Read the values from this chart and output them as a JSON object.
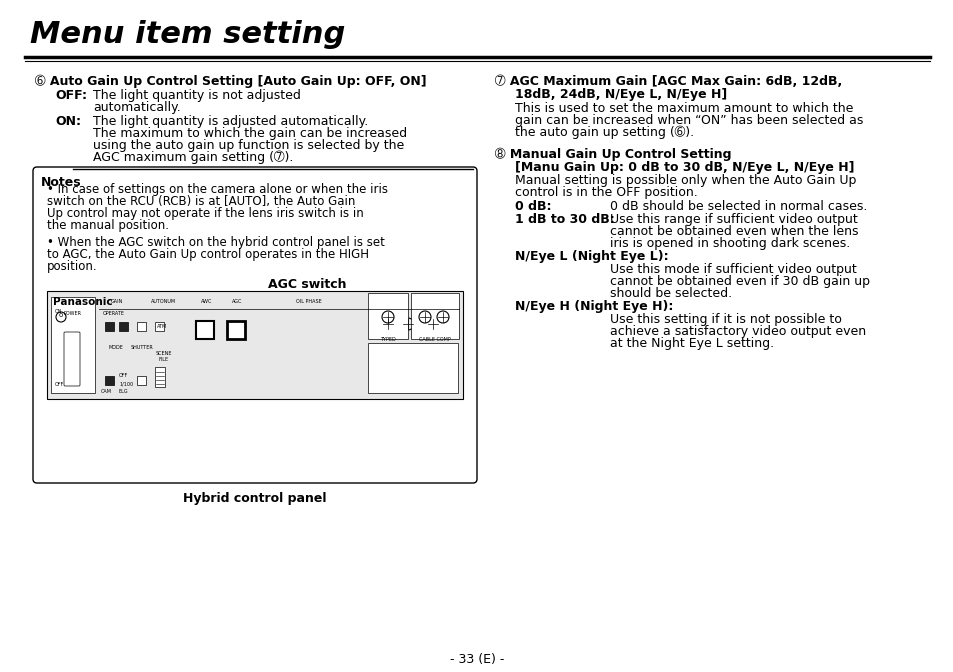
{
  "title": "Menu item setting",
  "bg_color": "#ffffff",
  "text_color": "#000000",
  "footer_text": "- 33 (E) -",
  "left_column": {
    "section5_header": "➅ Auto Gain Up Control Setting [Auto Gain Up: OFF, ON]",
    "section5_off_label": "OFF:",
    "section5_off_text1": "The light quantity is not adjusted",
    "section5_off_text2": "automatically.",
    "section5_on_label": "ON:",
    "section5_on_text1": "The light quantity is adjusted automatically.",
    "section5_on_text2": "The maximum to which the gain can be increased",
    "section5_on_text3": "using the auto gain up function is selected by the",
    "section5_on_text4": "AGC maximum gain setting (➆).",
    "notes_header": "Notes",
    "note1_lines": [
      "• In case of settings on the camera alone or when the iris",
      "switch on the RCU (RCB) is at [AUTO], the Auto Gain",
      "Up control may not operate if the lens iris switch is in",
      "the manual position."
    ],
    "note2_lines": [
      "• When the AGC switch on the hybrid control panel is set",
      "to AGC, the Auto Gain Up control operates in the HIGH",
      "position."
    ],
    "agc_switch_label": "AGC switch",
    "hybrid_panel_label": "Hybrid control panel"
  },
  "right_column": {
    "section6_header": "➆ AGC Maximum Gain [AGC Max Gain: 6dB, 12dB,",
    "section6_header2": "18dB, 24dB, N/Eye L, N/Eye H]",
    "section6_text1": "This is used to set the maximum amount to which the",
    "section6_text2": "gain can be increased when “ON” has been selected as",
    "section6_text3": "the auto gain up setting (➅).",
    "section7_header1": "➇ Manual Gain Up Control Setting",
    "section7_header2": "[Manu Gain Up: 0 dB to 30 dB, N/Eye L, N/Eye H]",
    "section7_text1": "Manual setting is possible only when the Auto Gain Up",
    "section7_text2": "control is in the OFF position.",
    "db0_label": "0 dB:",
    "db0_text": "0 dB should be selected in normal cases.",
    "db1to30_label": "1 dB to 30 dB:",
    "db1to30_text1": "Use this range if sufficient video output",
    "db1to30_text2": "cannot be obtained even when the lens",
    "db1to30_text3": "iris is opened in shooting dark scenes.",
    "neye_l_label": "N/Eye L (Night Eye L):",
    "neye_l_text1": "Use this mode if sufficient video output",
    "neye_l_text2": "cannot be obtained even if 30 dB gain up",
    "neye_l_text3": "should be selected.",
    "neye_h_label": "N/Eye H (Night Eye H):",
    "neye_h_text1": "Use this setting if it is not possible to",
    "neye_h_text2": "achieve a satisfactory video output even",
    "neye_h_text3": "at the Night Eye L setting."
  }
}
